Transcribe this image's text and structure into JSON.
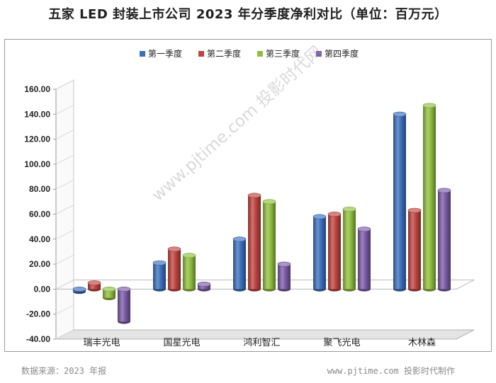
{
  "title": "五家 LED 封装上市公司 2023 年分季度净利对比（单位：百万元）",
  "footer": {
    "source": "数据来源：2023 年报",
    "credit": "www.pjtime.com 投影时代制作"
  },
  "watermark": "www.pjtime.com 投影时代网",
  "chart_data": {
    "type": "bar",
    "title": "五家 LED 封装上市公司 2023 年分季度净利对比（单位：百万元）",
    "categories": [
      "瑞丰光电",
      "国星光电",
      "鸿利智汇",
      "聚飞光电",
      "木林森"
    ],
    "series": [
      {
        "name": "第一季度",
        "color": "#3b6fbd",
        "values": [
          -2,
          21,
          40,
          58,
          140
        ]
      },
      {
        "name": "第二季度",
        "color": "#c0433f",
        "values": [
          5,
          32,
          75,
          60,
          63
        ]
      },
      {
        "name": "第三季度",
        "color": "#8fbe3e",
        "values": [
          -7,
          27,
          70,
          64,
          147
        ]
      },
      {
        "name": "第四季度",
        "color": "#7b5aa6",
        "values": [
          -26,
          4,
          20,
          48,
          79
        ]
      }
    ],
    "ylim": [
      -40,
      160
    ],
    "yticks": [
      "-40.00",
      "-20.00",
      "0.00",
      "20.00",
      "40.00",
      "60.00",
      "80.00",
      "100.00",
      "120.00",
      "140.00",
      "160.00"
    ],
    "legend": "top",
    "grid": false,
    "style": "3d-cylinder"
  }
}
